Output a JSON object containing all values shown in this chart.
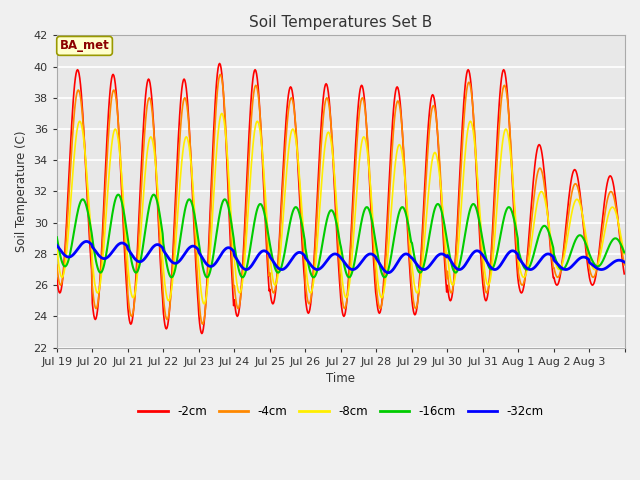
{
  "title": "Soil Temperatures Set B",
  "xlabel": "Time",
  "ylabel": "Soil Temperature (C)",
  "ylim": [
    22,
    42
  ],
  "yticks": [
    22,
    24,
    26,
    28,
    30,
    32,
    34,
    36,
    38,
    40,
    42
  ],
  "annotation": "BA_met",
  "fig_color": "#f0f0f0",
  "plot_bg_color": "#e8e8e8",
  "line_colors": {
    "-2cm": "#ff0000",
    "-4cm": "#ff8800",
    "-8cm": "#ffee00",
    "-16cm": "#00cc00",
    "-32cm": "#0000ff"
  },
  "line_widths": {
    "-2cm": 1.2,
    "-4cm": 1.2,
    "-8cm": 1.2,
    "-16cm": 1.5,
    "-32cm": 2.0
  },
  "xtick_labels": [
    "Jul 19",
    "Jul 20",
    "Jul 21",
    "Jul 22",
    "Jul 23",
    "Jul 24",
    "Jul 25",
    "Jul 26",
    "Jul 27",
    "Jul 28",
    "Jul 29",
    "Jul 30",
    "Jul 31",
    "Aug 1",
    "Aug 2",
    "Aug 3"
  ],
  "days": 16,
  "series": {
    "-2cm": {
      "phase_hours": 14.0,
      "peaks": [
        39.8,
        39.5,
        39.2,
        39.2,
        40.2,
        39.8,
        38.7,
        38.9,
        38.8,
        38.7,
        38.2,
        39.8,
        39.8,
        35.0,
        33.4,
        33.0
      ],
      "troughs": [
        25.5,
        23.8,
        23.5,
        23.2,
        22.9,
        24.0,
        24.8,
        24.2,
        24.0,
        24.2,
        24.1,
        25.0,
        25.0,
        25.5,
        26.0,
        26.0
      ]
    },
    "-4cm": {
      "phase_hours": 14.5,
      "peaks": [
        38.5,
        38.5,
        38.0,
        38.0,
        39.5,
        38.8,
        38.0,
        38.0,
        38.0,
        37.8,
        37.5,
        39.0,
        38.8,
        33.5,
        32.5,
        32.0
      ],
      "troughs": [
        26.0,
        24.5,
        24.0,
        23.8,
        23.5,
        24.5,
        25.5,
        24.8,
        24.5,
        24.5,
        24.5,
        25.5,
        25.5,
        26.0,
        26.5,
        26.5
      ]
    },
    "-8cm": {
      "phase_hours": 15.5,
      "peaks": [
        36.5,
        36.0,
        35.5,
        35.5,
        37.0,
        36.5,
        36.0,
        35.8,
        35.5,
        35.0,
        34.5,
        36.5,
        36.0,
        32.0,
        31.5,
        31.0
      ],
      "troughs": [
        26.5,
        25.5,
        25.2,
        25.0,
        24.8,
        25.5,
        26.0,
        25.5,
        25.2,
        25.2,
        25.5,
        26.0,
        26.0,
        26.5,
        27.0,
        27.0
      ]
    },
    "-16cm": {
      "phase_hours": 17.5,
      "peaks": [
        31.5,
        31.8,
        31.8,
        31.5,
        31.5,
        31.2,
        31.0,
        30.8,
        31.0,
        31.0,
        31.2,
        31.2,
        31.0,
        29.8,
        29.2,
        29.0
      ],
      "troughs": [
        27.2,
        26.8,
        26.8,
        26.5,
        26.5,
        26.5,
        26.8,
        26.5,
        26.5,
        26.5,
        26.8,
        26.8,
        27.0,
        27.0,
        27.0,
        27.2
      ]
    },
    "-32cm": {
      "phase_hours": 20.0,
      "peaks": [
        28.8,
        28.7,
        28.6,
        28.5,
        28.4,
        28.2,
        28.1,
        28.0,
        28.0,
        28.0,
        28.0,
        28.2,
        28.2,
        28.0,
        27.8,
        27.6
      ],
      "troughs": [
        27.8,
        27.7,
        27.5,
        27.4,
        27.2,
        27.0,
        27.0,
        27.0,
        27.0,
        26.8,
        27.0,
        27.0,
        27.0,
        27.0,
        27.0,
        27.0
      ]
    }
  }
}
